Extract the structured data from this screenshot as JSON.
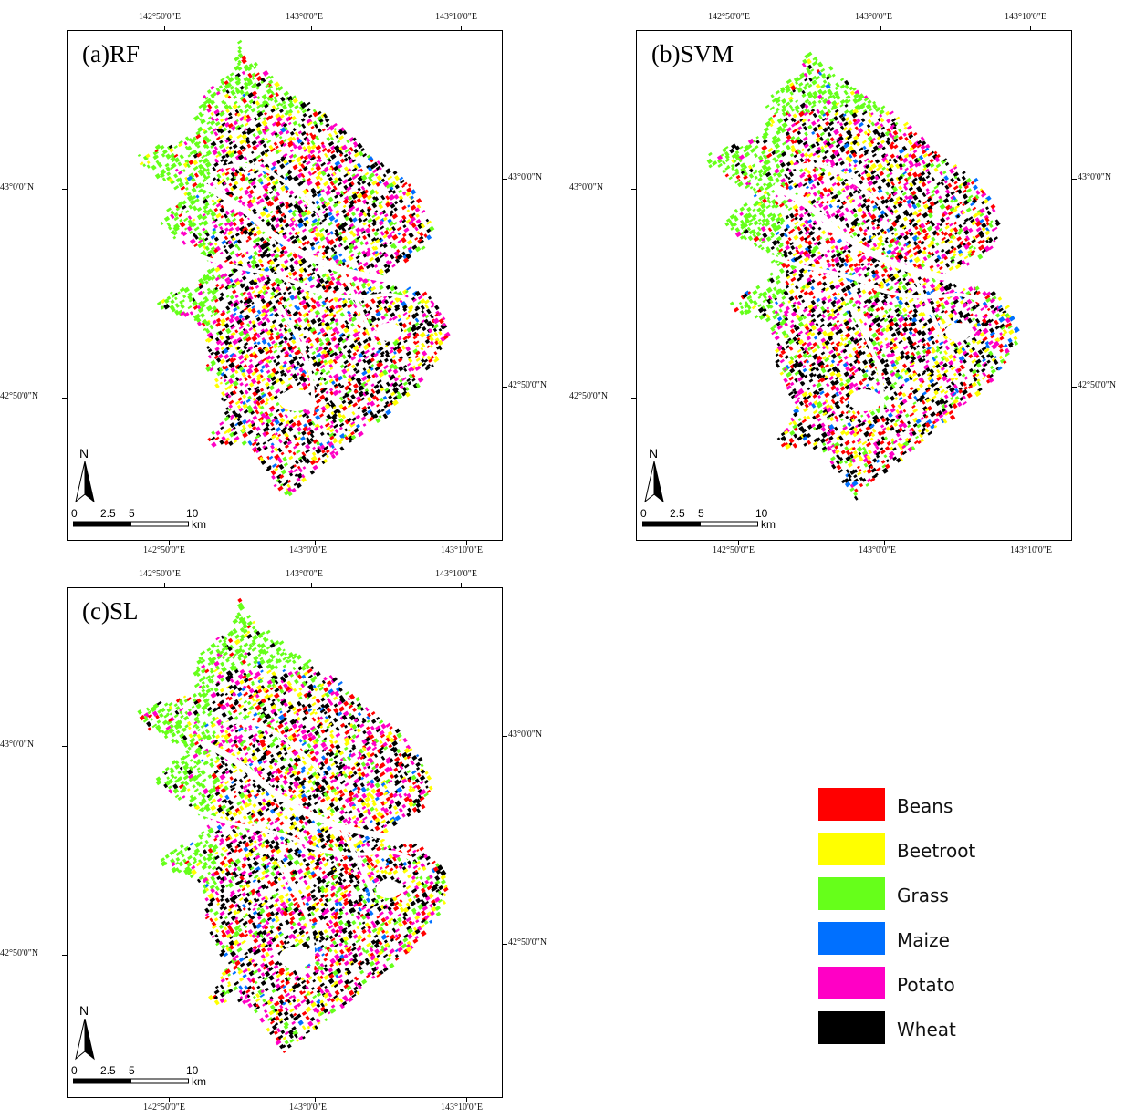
{
  "panels": [
    {
      "id": "a",
      "label": "(a)RF",
      "lon_top": [
        "142°50'0\"E",
        "143°0'0\"E",
        "143°10'0\"E"
      ],
      "lon_bottom": [
        "142°50'0\"E",
        "143°0'0\"E",
        "143°10'0\"E"
      ],
      "lat_left": [
        "43°0'0\"N",
        "42°50'0\"N"
      ],
      "lat_right": [
        "43°0'0\"N",
        "42°50'0\"N"
      ]
    },
    {
      "id": "b",
      "label": "(b)SVM",
      "lon_top": [
        "142°50'0\"E",
        "143°0'0\"E",
        "143°10'0\"E"
      ],
      "lon_bottom": [
        "142°50'0\"E",
        "143°0'0\"E",
        "143°10'0\"E"
      ],
      "lat_left": [
        "43°0'0\"N",
        "42°50'0\"N"
      ],
      "lat_right": [
        "43°0'0\"N",
        "42°50'0\"N"
      ]
    },
    {
      "id": "c",
      "label": "(c)SL",
      "lon_top": [
        "142°50'0\"E",
        "143°0'0\"E",
        "143°10'0\"E"
      ],
      "lon_bottom": [
        "142°50'0\"E",
        "143°0'0\"E",
        "143°10'0\"E"
      ],
      "lat_left": [
        "43°0'0\"N",
        "42°50'0\"N"
      ],
      "lat_right": [
        "43°0'0\"N",
        "42°50'0\"N"
      ]
    }
  ],
  "north_label": "N",
  "scale": {
    "ticks": [
      "0",
      "2.5",
      "5",
      "10"
    ],
    "unit": "km"
  },
  "legend": [
    {
      "label": "Beans",
      "color": "#ff0000"
    },
    {
      "label": "Beetroot",
      "color": "#ffff00"
    },
    {
      "label": "Grass",
      "color": "#66ff1a"
    },
    {
      "label": "Maize",
      "color": "#0070ff"
    },
    {
      "label": "Potato",
      "color": "#ff00c5"
    },
    {
      "label": "Wheat",
      "color": "#000000"
    }
  ]
}
